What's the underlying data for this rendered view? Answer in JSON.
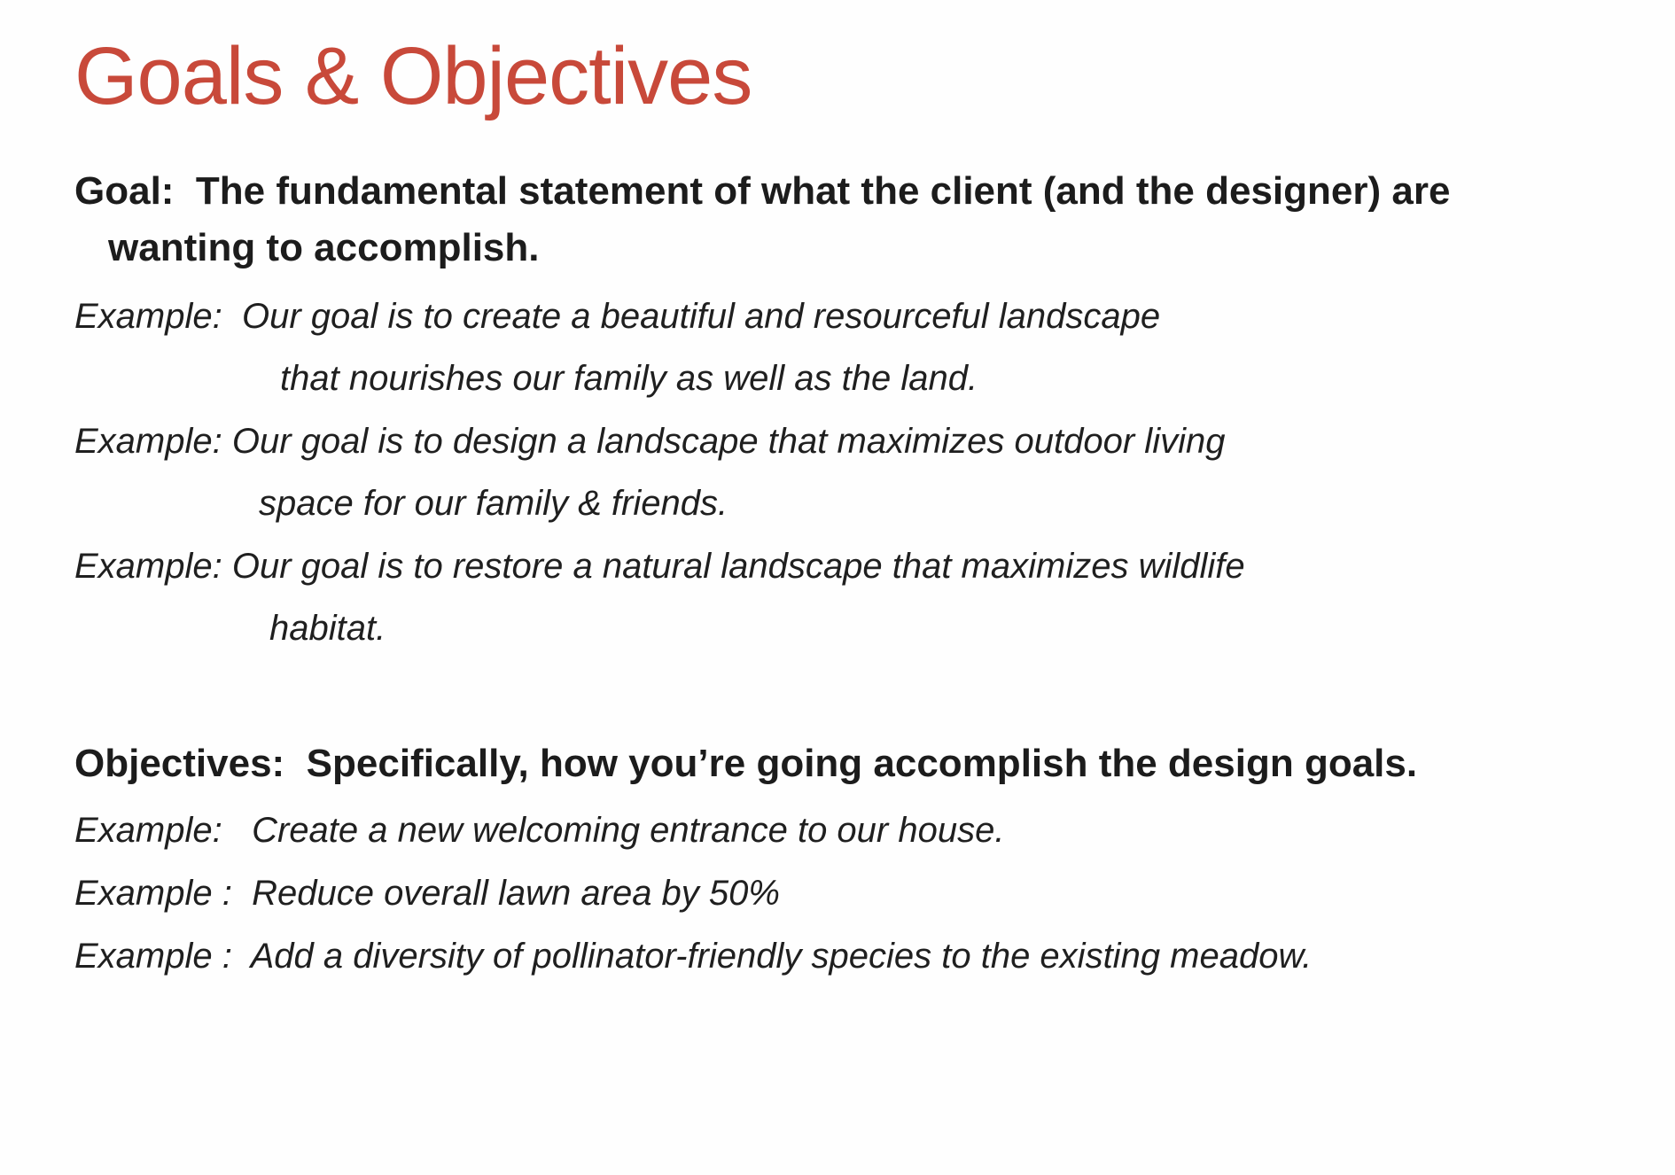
{
  "slide": {
    "title": "Goals & Objectives",
    "goal": {
      "heading_line1": "Goal:  The fundamental statement of what the client (and the designer) are",
      "heading_line2": "wanting to accomplish.",
      "examples": [
        {
          "line1": "Example:  Our goal is to create a beautiful and resourceful landscape",
          "line2": "that nourishes our family as well as the land."
        },
        {
          "line1": "Example: Our goal is to design a landscape that maximizes outdoor living",
          "line2": "space for our family & friends."
        },
        {
          "line1": "Example: Our goal is to restore a natural landscape that maximizes wildlife",
          "line2": "habitat."
        }
      ]
    },
    "objectives": {
      "heading": "Objectives:  Specifically, how you’re going accomplish the design goals.",
      "examples": [
        "Example:   Create a new welcoming entrance to our house.",
        "Example :  Reduce overall lawn area by 50%",
        "Example :  Add a diversity of pollinator-friendly species to the existing meadow."
      ]
    },
    "colors": {
      "title": "#c8493a",
      "text": "#1c1c1c"
    }
  }
}
